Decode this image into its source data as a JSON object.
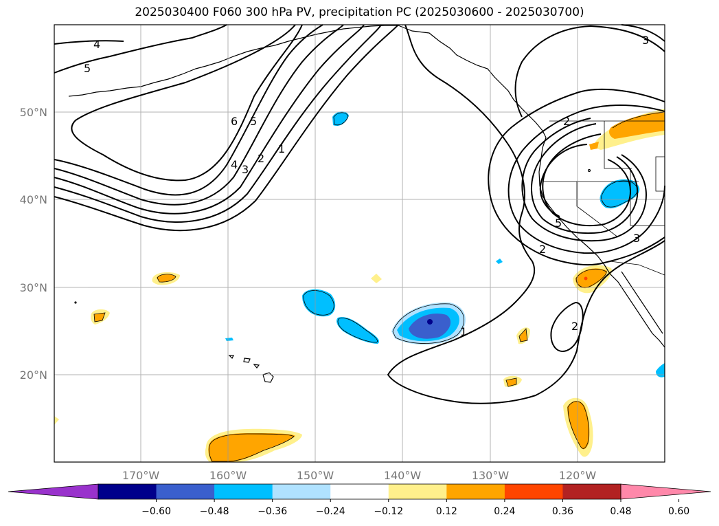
{
  "title": "2025030400 F060 300 hPa PV, precipitation PC (2025030600 - 2025030700)",
  "map": {
    "lon_range": [
      -180,
      -110
    ],
    "lat_range": [
      10,
      60
    ],
    "lat_ticks": [
      "50°N",
      "40°N",
      "30°N",
      "20°N"
    ],
    "lon_ticks": [
      "170°W",
      "160°W",
      "150°W",
      "140°W",
      "130°W",
      "120°W"
    ],
    "grid": true
  },
  "pv_contour_labels": [
    "4",
    "5",
    "6",
    "5",
    "4",
    "3",
    "2",
    "1",
    "3",
    "2",
    "3",
    "2",
    "1",
    "5",
    "2"
  ],
  "colorbar": {
    "ticks": [
      "−0.60",
      "−0.48",
      "−0.36",
      "−0.24",
      "−0.12",
      "0.12",
      "0.24",
      "0.36",
      "0.48",
      "0.60"
    ],
    "colors": [
      "#9932cc",
      "#00008b",
      "#3a5fcd",
      "#00bfff",
      "#b0e2ff",
      "#ffffff",
      "#fff08c",
      "#ffa500",
      "#ff4500",
      "#b22222",
      "#ff88aa"
    ],
    "extend": "both"
  }
}
